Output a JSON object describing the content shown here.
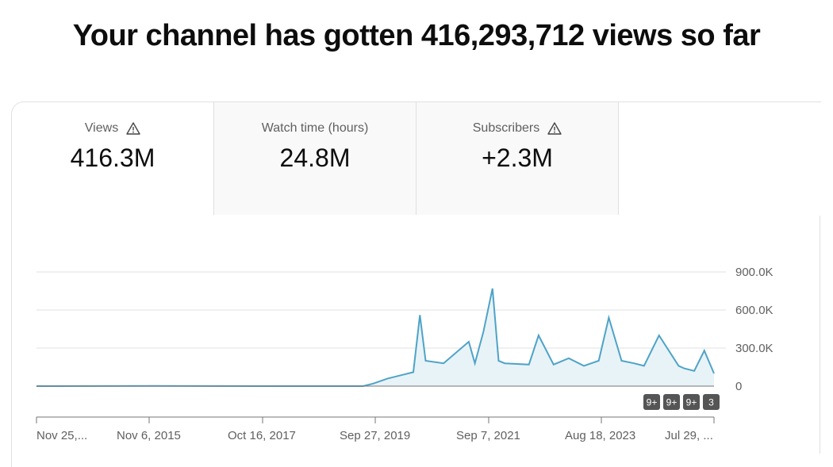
{
  "header": {
    "title": "Your channel has gotten 416,293,712 views so far"
  },
  "tabs": [
    {
      "label": "Views",
      "value": "416.3M",
      "warning": true,
      "active": true
    },
    {
      "label": "Watch time (hours)",
      "value": "24.8M",
      "warning": false,
      "active": false
    },
    {
      "label": "Subscribers",
      "value": "+2.3M",
      "warning": true,
      "active": false
    }
  ],
  "badges": [
    "9+",
    "9+",
    "9+",
    "3"
  ],
  "colors": {
    "line": "#4fa3c7",
    "fill": "#e8f3f8",
    "grid": "#e0e0e0",
    "axis": "#757575",
    "badge": "#555555"
  },
  "chart_data": {
    "type": "line",
    "series": [
      {
        "x": [
          "2013-11-25",
          "2015-11-06",
          "2017-10-16",
          "2019-05-01",
          "2019-07-01",
          "2019-09-27",
          "2020-03-01",
          "2020-04-10",
          "2020-05-15",
          "2020-09-01",
          "2021-02-01",
          "2021-03-10",
          "2021-05-01",
          "2021-06-25",
          "2021-08-01",
          "2021-09-07",
          "2022-02-01",
          "2022-04-01",
          "2022-07-01",
          "2022-10-01",
          "2023-01-01",
          "2023-04-01",
          "2023-06-01",
          "2023-08-18",
          "2023-11-01",
          "2024-01-01",
          "2024-04-01",
          "2024-07-29",
          "2024-09-01",
          "2024-11-01",
          "2025-01-01",
          "2025-03-01"
        ],
        "y": [
          0,
          2000,
          0,
          0,
          20000,
          60000,
          110000,
          560000,
          200000,
          180000,
          350000,
          180000,
          430000,
          770000,
          200000,
          180000,
          170000,
          400000,
          170000,
          220000,
          160000,
          200000,
          540000,
          200000,
          180000,
          160000,
          400000,
          160000,
          140000,
          120000,
          280000,
          100000
        ]
      }
    ],
    "ylim": [
      0,
      900000
    ],
    "yticks": [
      "900.0K",
      "600.0K",
      "300.0K",
      "0"
    ],
    "xticks": [
      "Nov 25,...",
      "Nov 6, 2015",
      "Oct 16, 2017",
      "Sep 27, 2019",
      "Sep 7, 2021",
      "Aug 18, 2023",
      "Jul 29, ..."
    ],
    "grid": true
  }
}
